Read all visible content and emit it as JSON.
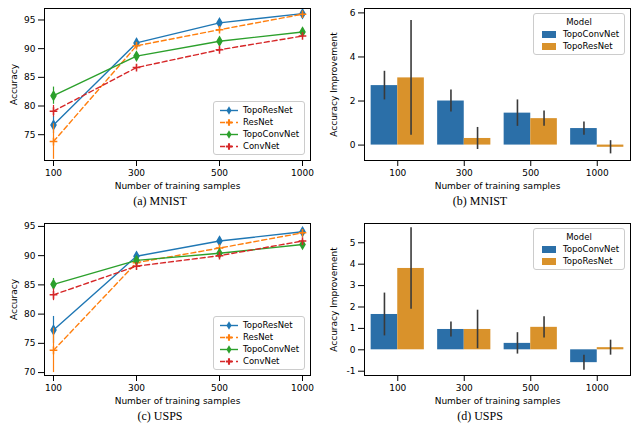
{
  "chart_data": [
    {
      "type": "line",
      "title": "(a) MNIST",
      "x_label": "Number of training samples",
      "y_label": "Accuracy",
      "categories": [
        100,
        300,
        500,
        1000
      ],
      "ylim": [
        70.5,
        97
      ],
      "yticks": [
        75,
        80,
        85,
        90,
        95
      ],
      "legend": "lower right",
      "series": [
        {
          "name": "TopoResNet",
          "color": "#1f77b4",
          "line_style": "solid",
          "marker": "diamond",
          "values": [
            76.7,
            91.0,
            94.5,
            96.1
          ],
          "errors": [
            1.5,
            0.8,
            0.4,
            0.3
          ]
        },
        {
          "name": "ResNet",
          "color": "#ff7f0e",
          "line_style": "dashed",
          "marker": "plus",
          "values": [
            73.8,
            90.5,
            93.3,
            96.0
          ],
          "errors": [
            3.1,
            0.6,
            0.5,
            0.3
          ]
        },
        {
          "name": "TopoConvNet",
          "color": "#2ca02c",
          "line_style": "solid",
          "marker": "diamond",
          "values": [
            81.8,
            88.7,
            91.3,
            92.9
          ],
          "errors": [
            1.5,
            0.5,
            0.4,
            0.3
          ]
        },
        {
          "name": "ConvNet",
          "color": "#d62728",
          "line_style": "dashed",
          "marker": "plus",
          "values": [
            79.1,
            86.7,
            89.8,
            92.2
          ],
          "errors": [
            1.0,
            0.5,
            0.4,
            0.3
          ]
        }
      ]
    },
    {
      "type": "bar",
      "title": "(b) MNIST",
      "x_label": "Number of training samples",
      "y_label": "Accuracy Improvement",
      "categories": [
        100,
        300,
        500,
        1000
      ],
      "ylim": [
        -0.7,
        6.2
      ],
      "yticks": [
        0,
        2,
        4,
        6
      ],
      "legend": "upper right",
      "legend_title": "Model",
      "series": [
        {
          "name": "TopoConvNet",
          "color": "#2b6fa8",
          "values": [
            2.7,
            2.0,
            1.45,
            0.75
          ],
          "errors": [
            0.65,
            0.5,
            0.6,
            0.3
          ]
        },
        {
          "name": "TopoResNet",
          "color": "#d9922b",
          "values": [
            3.05,
            0.3,
            1.2,
            -0.1
          ],
          "errors": [
            2.6,
            0.5,
            0.35,
            0.3
          ]
        }
      ]
    },
    {
      "type": "line",
      "title": "(c) USPS",
      "x_label": "Number of training samples",
      "y_label": "Accuracy",
      "categories": [
        100,
        300,
        500,
        1000
      ],
      "ylim": [
        69.5,
        95.5
      ],
      "yticks": [
        70,
        75,
        80,
        85,
        90,
        95
      ],
      "legend": "lower right",
      "series": [
        {
          "name": "TopoResNet",
          "color": "#1f77b4",
          "line_style": "solid",
          "marker": "diamond",
          "values": [
            77.3,
            89.9,
            92.5,
            94.1
          ],
          "errors": [
            2.3,
            0.6,
            0.3,
            0.3
          ]
        },
        {
          "name": "ResNet",
          "color": "#ff7f0e",
          "line_style": "dashed",
          "marker": "plus",
          "values": [
            73.8,
            88.8,
            91.3,
            93.9
          ],
          "errors": [
            3.8,
            0.6,
            0.4,
            0.3
          ]
        },
        {
          "name": "TopoConvNet",
          "color": "#2ca02c",
          "line_style": "solid",
          "marker": "diamond",
          "values": [
            85.1,
            89.2,
            90.4,
            91.9
          ],
          "errors": [
            1.0,
            0.5,
            0.4,
            0.3
          ]
        },
        {
          "name": "ConvNet",
          "color": "#d62728",
          "line_style": "dashed",
          "marker": "plus",
          "values": [
            83.3,
            88.2,
            90.0,
            92.5
          ],
          "errors": [
            1.0,
            0.5,
            0.4,
            0.3
          ]
        }
      ]
    },
    {
      "type": "bar",
      "title": "(d) USPS",
      "x_label": "Number of training samples",
      "y_label": "Accuracy Improvement",
      "categories": [
        100,
        300,
        500,
        1000
      ],
      "ylim": [
        -1.2,
        5.9
      ],
      "yticks": [
        -1,
        0,
        1,
        2,
        3,
        4,
        5
      ],
      "legend": "upper right",
      "legend_title": "Model",
      "series": [
        {
          "name": "TopoConvNet",
          "color": "#2b6fa8",
          "values": [
            1.65,
            0.95,
            0.3,
            -0.6
          ],
          "errors": [
            1.0,
            0.35,
            0.5,
            0.35
          ]
        },
        {
          "name": "TopoResNet",
          "color": "#d9922b",
          "values": [
            3.8,
            0.95,
            1.05,
            0.1
          ],
          "errors": [
            1.9,
            0.9,
            0.5,
            0.35
          ]
        }
      ]
    }
  ]
}
